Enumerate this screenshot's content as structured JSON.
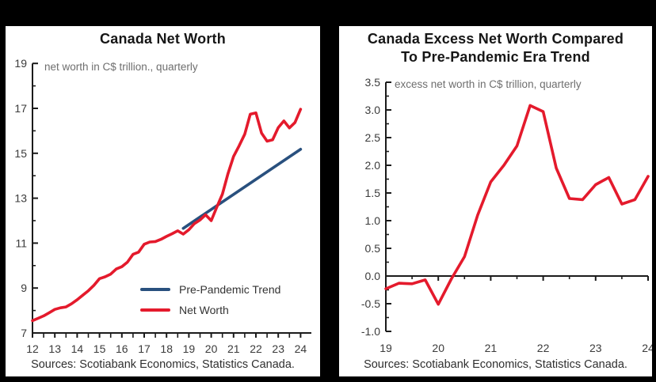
{
  "colors": {
    "series_red": "#e41a2c",
    "trend_blue": "#29507e",
    "frame_black": "#000000",
    "axis_ink": "#1b1b1b"
  },
  "chart_data": [
    {
      "type": "line",
      "title_lines": [
        "Canada Net Worth"
      ],
      "subtitle": "net worth in C$ trillion., quarterly",
      "sources": "Sources: Scotiabank Economics, Statistics Canada.",
      "xlabel": "",
      "ylabel": "",
      "xlim": [
        12,
        24.5
      ],
      "ylim": [
        7,
        19
      ],
      "grid": false,
      "legend_position": "inside-bottom-right",
      "xticks": {
        "values": [
          12,
          13,
          14,
          15,
          16,
          17,
          18,
          19,
          20,
          21,
          22,
          23,
          24
        ],
        "labels": [
          "12",
          "13",
          "14",
          "15",
          "16",
          "17",
          "18",
          "19",
          "20",
          "21",
          "22",
          "23",
          "24"
        ]
      },
      "yticks": {
        "values": [
          19,
          17,
          15,
          13,
          11,
          9,
          7
        ],
        "labels": [
          "19",
          "17",
          "15",
          "13",
          "11",
          "9",
          "7"
        ]
      },
      "xticks_minor": [
        12.5,
        13.5,
        14.5,
        15.5,
        16.5,
        17.5,
        18.5,
        19.5,
        20.5,
        21.5,
        22.5,
        23.5
      ],
      "yticks_minor": [
        18,
        16,
        14,
        12,
        10,
        8
      ],
      "legend": {
        "items": [
          {
            "label": "Pre-Pandemic Trend",
            "color": "#29507e"
          },
          {
            "label": "Net Worth",
            "color": "#e41a2c"
          }
        ]
      },
      "series": [
        {
          "name": "Pre-Pandemic Trend",
          "color": "#29507e",
          "x": [
            18.75,
            24.0
          ],
          "y": [
            11.66,
            15.18
          ]
        },
        {
          "name": "Net Worth",
          "color": "#e41a2c",
          "x_start": 12,
          "x_step": 0.25,
          "y": [
            7.55,
            7.65,
            7.76,
            7.9,
            8.05,
            8.12,
            8.16,
            8.3,
            8.48,
            8.68,
            8.88,
            9.12,
            9.42,
            9.5,
            9.62,
            9.85,
            9.95,
            10.15,
            10.5,
            10.6,
            10.95,
            11.05,
            11.07,
            11.17,
            11.3,
            11.42,
            11.55,
            11.4,
            11.6,
            11.87,
            12.03,
            12.26,
            12.0,
            12.6,
            13.18,
            14.1,
            14.86,
            15.33,
            15.85,
            16.74,
            16.8,
            15.9,
            15.54,
            15.6,
            16.14,
            16.44,
            16.13,
            16.37,
            16.96
          ]
        }
      ]
    },
    {
      "type": "line",
      "title_lines": [
        "Canada Excess Net Worth Compared",
        "To Pre-Pandemic Era Trend"
      ],
      "subtitle": "excess net worth in C$ trillion, quarterly",
      "sources": "Sources: Scotiabank Economics, Statistics Canada.",
      "xlabel": "",
      "ylabel": "",
      "xlim": [
        19,
        24
      ],
      "ylim": [
        -1.0,
        3.5
      ],
      "grid": false,
      "zero_line": true,
      "xticks": {
        "values": [
          19,
          20,
          21,
          22,
          23,
          24
        ],
        "labels": [
          "19",
          "20",
          "21",
          "22",
          "23",
          "24"
        ]
      },
      "yticks": {
        "values": [
          3.5,
          3.0,
          2.5,
          2.0,
          1.5,
          1.0,
          0.5,
          0.0,
          -0.5,
          -1.0
        ],
        "labels": [
          "3.5",
          "3.0",
          "2.5",
          "2.0",
          "1.5",
          "1.0",
          "0.5",
          "0.0",
          "-0.5",
          "-1.0"
        ]
      },
      "xticks_minor": [
        19.5,
        20.5,
        21.5,
        22.5,
        23.5
      ],
      "yticks_minor": [
        3.25,
        2.75,
        2.25,
        1.75,
        1.25,
        0.75,
        0.25,
        -0.25,
        -0.75
      ],
      "series": [
        {
          "name": "Excess Net Worth",
          "color": "#e41a2c",
          "x_start": 19,
          "x_step": 0.25,
          "y": [
            -0.23,
            -0.13,
            -0.14,
            -0.07,
            -0.51,
            -0.05,
            0.35,
            1.1,
            1.7,
            2.0,
            2.35,
            3.08,
            2.97,
            1.95,
            1.4,
            1.38,
            1.65,
            1.78,
            1.3,
            1.38,
            1.8
          ]
        }
      ]
    }
  ]
}
